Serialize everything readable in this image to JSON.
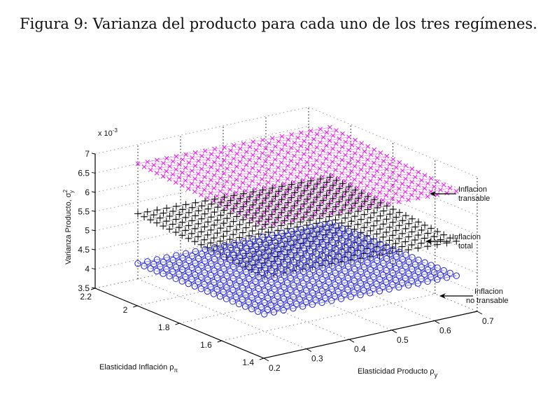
{
  "caption": "Figura 9: Varianza del producto para cada uno de los tres regímenes.",
  "chart_data": {
    "type": "surface3d",
    "title": "Figura 9: Varianza del producto para cada uno de los tres regímenes.",
    "xlabel": "Elasticidad Producto ρy",
    "ylabel": "Elasticidad Inflación ρπ",
    "zlabel": "Varianza Producto, σ²y",
    "xlabel_main": "Elasticidad Producto ρ",
    "xlabel_sub": "y",
    "ylabel_main": "Elasticidad Inflación ρ",
    "ylabel_sub": "π",
    "zlabel_main": "Varianza Producto, σ",
    "zlabel_sup": "2",
    "zlabel_sub": "y",
    "z_exponent_label": "x 10",
    "z_exponent_power": "-3",
    "xlim": [
      0.2,
      0.7
    ],
    "ylim": [
      1.4,
      2.2
    ],
    "zlim": [
      3.5,
      7
    ],
    "x_ticks": [
      "0.2",
      "0.3",
      "0.4",
      "0.5",
      "0.6",
      "0.7"
    ],
    "y_ticks": [
      "1.4",
      "1.6",
      "1.8",
      "2",
      "2.2"
    ],
    "z_ticks": [
      "3.5",
      "4",
      "4.5",
      "5",
      "5.5",
      "6",
      "6.5",
      "7"
    ],
    "grid": true,
    "grid_x_range": [
      0.3,
      0.75
    ],
    "grid_y_range": [
      1.6,
      2.2
    ],
    "grid_n": 20,
    "series": [
      {
        "name": "Inflacion transable",
        "label_line1": "Inflacion",
        "label_line2": "transable",
        "marker": "x",
        "color": "#e020e0",
        "line_color": "#f0a0f0",
        "z_at_corners": {
          "x0_y22": 6.5,
          "x1_y22": 6.35,
          "x0_y16": 6.25,
          "x1_y16": 6.05
        }
      },
      {
        "name": "Inflacion total",
        "label_line1": "Inflacion",
        "label_line2": "total",
        "marker": "+",
        "color": "#000000",
        "line_color": "#a8a8a8",
        "z_at_corners": {
          "x0_y22": 5.2,
          "x1_y22": 5.05,
          "x0_y16": 4.95,
          "x1_y16": 4.75
        }
      },
      {
        "name": "Inflacion no transable",
        "label_line1": "Inflacion",
        "label_line2": "no transable",
        "marker": "o",
        "color": "#2020d0",
        "line_color": "#9090e8",
        "z_at_corners": {
          "x0_y22": 3.9,
          "x1_y22": 3.85,
          "x0_y16": 3.95,
          "x1_y16": 3.85
        }
      }
    ]
  }
}
